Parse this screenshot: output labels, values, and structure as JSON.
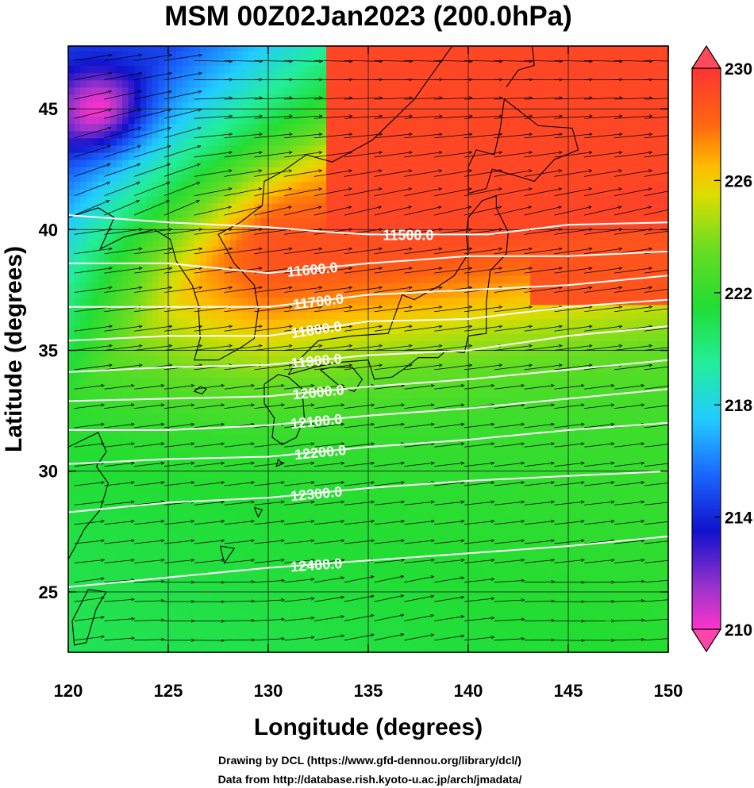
{
  "chart_data": {
    "type": "heatmap",
    "title": "MSM 00Z02Jan2023 (200.0hPa)",
    "xlabel": "Longitude (degrees)",
    "ylabel": "Latitude  (degrees)",
    "xlim": [
      120,
      150
    ],
    "ylim": [
      22.5,
      47.6
    ],
    "x_ticks": [
      {
        "value": 120,
        "label": "120"
      },
      {
        "value": 125,
        "label": "125"
      },
      {
        "value": 130,
        "label": "130"
      },
      {
        "value": 135,
        "label": "135"
      },
      {
        "value": 140,
        "label": "140"
      },
      {
        "value": 145,
        "label": "145"
      },
      {
        "value": 150,
        "label": "150"
      }
    ],
    "y_ticks": [
      {
        "value": 25,
        "label": "25"
      },
      {
        "value": 30,
        "label": "30"
      },
      {
        "value": 35,
        "label": "35"
      },
      {
        "value": 40,
        "label": "40"
      },
      {
        "value": 45,
        "label": "45"
      }
    ],
    "colorbar": {
      "min": 210,
      "max": 230,
      "ticks": [
        {
          "value": 210,
          "label": "210"
        },
        {
          "value": 214,
          "label": "214"
        },
        {
          "value": 218,
          "label": "218"
        },
        {
          "value": 222,
          "label": "222"
        },
        {
          "value": 226,
          "label": "226"
        },
        {
          "value": 230,
          "label": "230"
        }
      ],
      "stops": [
        {
          "value": 210,
          "color": "#ff33cc"
        },
        {
          "value": 211.5,
          "color": "#9933cc"
        },
        {
          "value": 213.5,
          "color": "#1111cc"
        },
        {
          "value": 215.5,
          "color": "#1a66ff"
        },
        {
          "value": 217.5,
          "color": "#22ccff"
        },
        {
          "value": 219.5,
          "color": "#22ee99"
        },
        {
          "value": 221.5,
          "color": "#22dd33"
        },
        {
          "value": 223.5,
          "color": "#66dd22"
        },
        {
          "value": 225.5,
          "color": "#dddd00"
        },
        {
          "value": 226.5,
          "color": "#ffbb00"
        },
        {
          "value": 228,
          "color": "#ff6611"
        },
        {
          "value": 230,
          "color": "#ff3333"
        }
      ]
    },
    "contours": [
      {
        "label": "11500.0",
        "label_lon": 137.0,
        "points": [
          [
            120,
            40.6
          ],
          [
            125,
            40.3
          ],
          [
            130,
            40.1
          ],
          [
            133,
            39.9
          ],
          [
            135,
            39.8
          ],
          [
            138,
            39.8
          ],
          [
            141,
            39.8
          ],
          [
            145,
            40.2
          ],
          [
            150,
            40.3
          ]
        ]
      },
      {
        "label": "11600.0",
        "label_lon": 132.2,
        "points": [
          [
            120,
            38.6
          ],
          [
            125,
            38.6
          ],
          [
            130,
            38.2
          ],
          [
            135,
            38.6
          ],
          [
            140,
            38.9
          ],
          [
            145,
            38.9
          ],
          [
            150,
            39.1
          ]
        ]
      },
      {
        "label": "11700.0",
        "label_lon": 132.5,
        "points": [
          [
            120,
            36.8
          ],
          [
            125,
            36.8
          ],
          [
            130,
            36.8
          ],
          [
            135,
            37.3
          ],
          [
            140,
            37.5
          ],
          [
            145,
            37.7
          ],
          [
            150,
            38.1
          ]
        ]
      },
      {
        "label": "11800.0",
        "label_lon": 132.4,
        "points": [
          [
            120,
            35.4
          ],
          [
            125,
            35.6
          ],
          [
            130,
            35.6
          ],
          [
            135,
            36.2
          ],
          [
            140,
            36.3
          ],
          [
            145,
            36.8
          ],
          [
            150,
            37.1
          ]
        ]
      },
      {
        "label": "11900.0",
        "label_lon": 132.4,
        "points": [
          [
            120,
            34.1
          ],
          [
            125,
            34.3
          ],
          [
            130,
            34.4
          ],
          [
            135,
            34.8
          ],
          [
            140,
            35.0
          ],
          [
            145,
            35.6
          ],
          [
            150,
            36.0
          ]
        ]
      },
      {
        "label": "12000.0",
        "label_lon": 132.5,
        "points": [
          [
            120,
            32.9
          ],
          [
            125,
            33.0
          ],
          [
            130,
            33.1
          ],
          [
            135,
            33.5
          ],
          [
            140,
            33.8
          ],
          [
            145,
            34.2
          ],
          [
            150,
            34.6
          ]
        ]
      },
      {
        "label": "12100.0",
        "label_lon": 132.4,
        "points": [
          [
            120,
            31.7
          ],
          [
            125,
            31.7
          ],
          [
            130,
            31.9
          ],
          [
            135,
            32.3
          ],
          [
            140,
            32.6
          ],
          [
            145,
            33.0
          ],
          [
            150,
            33.4
          ]
        ]
      },
      {
        "label": "12200.0",
        "label_lon": 132.6,
        "points": [
          [
            120,
            30.3
          ],
          [
            125,
            30.5
          ],
          [
            130,
            30.6
          ],
          [
            135,
            31.0
          ],
          [
            140,
            31.3
          ],
          [
            145,
            31.7
          ],
          [
            150,
            32.0
          ]
        ]
      },
      {
        "label": "12300.0",
        "label_lon": 132.4,
        "points": [
          [
            120,
            28.3
          ],
          [
            125,
            28.7
          ],
          [
            130,
            28.9
          ],
          [
            135,
            29.3
          ],
          [
            140,
            29.6
          ],
          [
            145,
            29.8
          ],
          [
            150,
            30.0
          ]
        ]
      },
      {
        "label": "12400.0",
        "label_lon": 132.4,
        "points": [
          [
            120,
            25.2
          ],
          [
            125,
            25.6
          ],
          [
            130,
            26.0
          ],
          [
            135,
            26.3
          ],
          [
            140,
            26.6
          ],
          [
            145,
            26.9
          ],
          [
            150,
            27.3
          ]
        ]
      }
    ]
  },
  "footer": {
    "line1": "Drawing by DCL (https://www.gfd-dennou.org/library/dcl/)",
    "line2": "Data from http://database.rish.kyoto-u.ac.jp/arch/jmadata/"
  }
}
